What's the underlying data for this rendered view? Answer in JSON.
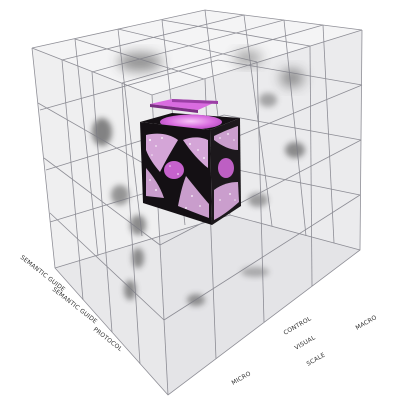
{
  "diagram": {
    "axis_labels": {
      "depth_axis_top": "",
      "depth_axis_mid": "",
      "depth_axis_low": "",
      "left_near": "SEMANTIC GUIDE",
      "left_mid": "SEMANTIC GUIDE",
      "left_far": "PROTOCOL",
      "bottom_a": "CONTROL",
      "bottom_b": "MICRO",
      "bottom_c": "VISUAL",
      "bottom_d": "SCALE",
      "bottom_e": "MACRO"
    },
    "colors": {
      "highlight": "#d96ce0",
      "core": "#141014",
      "grid": "#7d7d86",
      "shadow": "#3a3a3a"
    }
  }
}
